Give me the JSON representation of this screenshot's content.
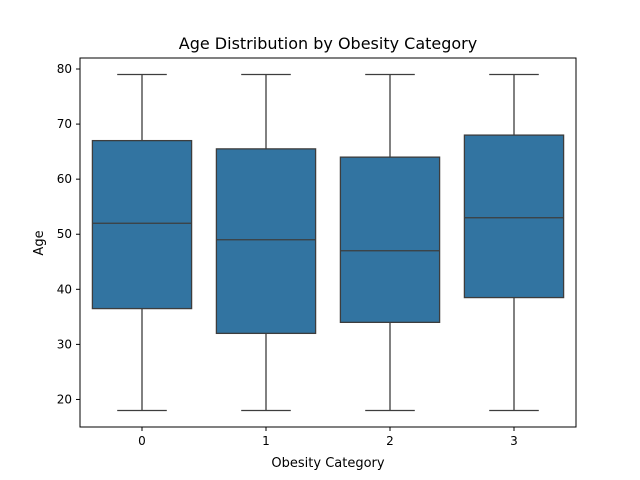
{
  "chart_data": {
    "type": "box",
    "title": "Age Distribution by Obesity Category",
    "xlabel": "Obesity Category",
    "ylabel": "Age",
    "categories": [
      "0",
      "1",
      "2",
      "3"
    ],
    "boxes": [
      {
        "category": "0",
        "min": 18,
        "q1": 36.5,
        "median": 52,
        "q3": 67,
        "max": 79
      },
      {
        "category": "1",
        "min": 18,
        "q1": 32,
        "median": 49,
        "q3": 65.5,
        "max": 79
      },
      {
        "category": "2",
        "min": 18,
        "q1": 34,
        "median": 47,
        "q3": 64,
        "max": 79
      },
      {
        "category": "3",
        "min": 18,
        "q1": 38.5,
        "median": 53,
        "q3": 68,
        "max": 79
      }
    ],
    "ylim": [
      15,
      82
    ],
    "yticks": [
      "20",
      "30",
      "40",
      "50",
      "60",
      "70",
      "80"
    ],
    "grid": false,
    "box_color": "#3274a1",
    "line_color": "#3d3d3d"
  }
}
